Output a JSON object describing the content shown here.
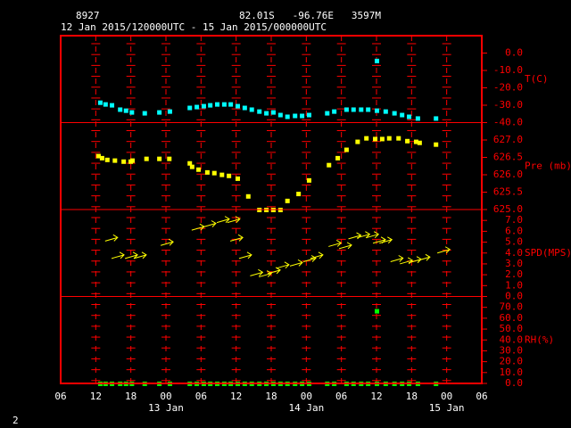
{
  "header": {
    "station": "8927",
    "location": "82.01S   -96.76E   3597M",
    "period": "12 Jan 2015/120000UTC - 15 Jan 2015/000000UTC"
  },
  "page_number": "2",
  "axis": {
    "xlim": [
      0,
      72
    ],
    "xticks": [
      {
        "value": 0,
        "label": "06"
      },
      {
        "value": 6,
        "label": "12"
      },
      {
        "value": 12,
        "label": "18"
      },
      {
        "value": 18,
        "label": "00"
      },
      {
        "value": 24,
        "label": "06"
      },
      {
        "value": 30,
        "label": "12"
      },
      {
        "value": 36,
        "label": "18"
      },
      {
        "value": 42,
        "label": "00"
      },
      {
        "value": 48,
        "label": "06"
      },
      {
        "value": 54,
        "label": "12"
      },
      {
        "value": 60,
        "label": "18"
      },
      {
        "value": 66,
        "label": "00"
      },
      {
        "value": 72,
        "label": "06"
      }
    ],
    "date_labels": [
      {
        "value": 18,
        "label": "13 Jan"
      },
      {
        "value": 42,
        "label": "14 Jan"
      },
      {
        "value": 66,
        "label": "15 Jan"
      }
    ]
  },
  "chart_data": [
    {
      "type": "scatter",
      "ylabel": "T(C)",
      "ylim": [
        -40,
        10
      ],
      "yticks": [
        {
          "value": 0,
          "label": "0.0"
        },
        {
          "value": -10,
          "label": "-10.0"
        },
        {
          "value": -20,
          "label": "-20.0"
        },
        {
          "value": -30,
          "label": "-30.0"
        },
        {
          "value": -40,
          "label": "-40.0"
        }
      ],
      "series": [
        {
          "color": "#00ffff",
          "x": [
            6.7,
            7.6,
            8.7,
            10.1,
            11.1,
            12.1,
            14.3,
            16.8,
            18.6,
            22.0,
            23.2,
            24.4,
            25.5,
            26.7,
            27.9,
            29.0,
            30.2,
            31.4,
            32.6,
            33.9,
            35.1,
            36.3,
            37.5,
            38.7,
            40.0,
            41.2,
            42.4,
            45.5,
            46.7,
            48.8,
            50.0,
            51.3,
            52.5,
            54.0,
            54.0,
            55.5,
            57.0,
            58.3,
            59.5,
            61.0,
            64.1
          ],
          "values": [
            -28.3,
            -29.3,
            -29.8,
            -32.3,
            -32.9,
            -33.9,
            -34.4,
            -33.9,
            -33.4,
            -31.3,
            -30.8,
            -30.3,
            -29.8,
            -29.3,
            -29.3,
            -29.3,
            -30.3,
            -31.3,
            -32.3,
            -33.4,
            -34.4,
            -33.9,
            -35.4,
            -36.4,
            -35.9,
            -35.9,
            -35.4,
            -34.4,
            -33.4,
            -32.3,
            -32.3,
            -32.3,
            -32.3,
            -32.9,
            -4.3,
            -33.4,
            -34.4,
            -35.4,
            -36.4,
            -37.4,
            -37.4
          ]
        }
      ]
    },
    {
      "type": "scatter",
      "ylabel": "Pre (mb)",
      "ylim": [
        625,
        627.5
      ],
      "yticks": [
        {
          "value": 627,
          "label": "627.0"
        },
        {
          "value": 626.5,
          "label": "626.5"
        },
        {
          "value": 626,
          "label": "626.0"
        },
        {
          "value": 625.5,
          "label": "625.5"
        },
        {
          "value": 625,
          "label": "625.0"
        }
      ],
      "series": [
        {
          "color": "#ffff00",
          "x": [
            6.4,
            7.0,
            7.9,
            9.2,
            10.7,
            11.9,
            12.2,
            14.6,
            16.8,
            18.5,
            22.0,
            22.4,
            23.5,
            25.0,
            26.2,
            27.5,
            28.7,
            30.2,
            32.0,
            33.9,
            35.1,
            36.3,
            37.5,
            38.7,
            40.6,
            42.4,
            45.8,
            47.3,
            48.8,
            50.7,
            52.2,
            53.7,
            54.9,
            56.1,
            57.7,
            59.2,
            60.7,
            61.3,
            64.1
          ],
          "values": [
            626.55,
            626.49,
            626.44,
            626.42,
            626.39,
            626.39,
            626.42,
            626.47,
            626.47,
            626.47,
            626.34,
            626.24,
            626.16,
            626.08,
            626.06,
            626.01,
            625.98,
            625.9,
            625.39,
            625.0,
            625.0,
            625.0,
            625.0,
            625.26,
            625.46,
            625.85,
            626.29,
            626.49,
            626.73,
            626.96,
            627.06,
            627.04,
            627.04,
            627.06,
            627.06,
            626.98,
            626.96,
            626.93,
            626.88
          ]
        }
      ]
    },
    {
      "type": "arrows",
      "ylabel": "SPD(MPS)",
      "ylim": [
        0,
        8
      ],
      "yticks": [
        {
          "value": 7,
          "label": "7.0"
        },
        {
          "value": 6,
          "label": "6.0"
        },
        {
          "value": 5,
          "label": "5.0"
        },
        {
          "value": 4,
          "label": "4.0"
        },
        {
          "value": 3,
          "label": "3.0"
        },
        {
          "value": 2,
          "label": "2.0"
        },
        {
          "value": 1,
          "label": "1.0"
        },
        {
          "value": 0,
          "label": "0.0"
        }
      ],
      "series": [
        {
          "color": "#ffff00",
          "x": [
            7.6,
            8.7,
            11.0,
            12.5,
            17.1,
            22.4,
            24.4,
            26.7,
            28.5,
            29.0,
            30.5,
            32.4,
            33.9,
            35.4,
            36.9,
            39.2,
            41.5,
            42.7,
            45.8,
            47.6,
            49.2,
            50.7,
            52.2,
            53.4,
            54.5,
            56.4,
            58.0,
            59.5,
            61.0,
            64.4
          ],
          "values": [
            5.1,
            3.5,
            3.5,
            3.5,
            4.7,
            6.1,
            6.4,
            6.8,
            6.8,
            5.1,
            3.5,
            1.9,
            1.8,
            2.1,
            2.6,
            2.8,
            3.2,
            3.5,
            4.6,
            4.4,
            5.3,
            5.4,
            5.4,
            4.9,
            4.9,
            3.2,
            3.0,
            3.1,
            3.3,
            4.0
          ]
        }
      ]
    },
    {
      "type": "scatter",
      "ylabel": "RH(%)",
      "ylim": [
        0,
        80
      ],
      "yticks": [
        {
          "value": 70,
          "label": "70.0"
        },
        {
          "value": 60,
          "label": "60.0"
        },
        {
          "value": 50,
          "label": "50.0"
        },
        {
          "value": 40,
          "label": "40.0"
        },
        {
          "value": 30,
          "label": "30.0"
        },
        {
          "value": 20,
          "label": "20.0"
        },
        {
          "value": 10,
          "label": "10.0"
        },
        {
          "value": 0,
          "label": "0.0"
        }
      ],
      "series": [
        {
          "color": "#00ff00",
          "x": [
            6.7,
            7.6,
            8.7,
            10.1,
            11.1,
            12.1,
            14.3,
            16.8,
            18.6,
            22.0,
            23.2,
            24.4,
            25.5,
            26.7,
            27.9,
            29.0,
            30.2,
            31.4,
            32.6,
            33.9,
            35.1,
            36.3,
            37.5,
            38.7,
            40.0,
            41.2,
            42.4,
            45.5,
            46.7,
            48.8,
            50.0,
            51.3,
            52.5,
            54.0,
            54.0,
            55.5,
            57.0,
            58.3,
            59.5,
            61.0,
            64.1
          ],
          "values": [
            0,
            0,
            0,
            0,
            0,
            0,
            0,
            0,
            0,
            0,
            0,
            0,
            0,
            0,
            0,
            0,
            0,
            0,
            0,
            0,
            0,
            0,
            0,
            0,
            0,
            0,
            0,
            0,
            0,
            0,
            0,
            0,
            0,
            0,
            66.8,
            0,
            0,
            0,
            0,
            0,
            0
          ]
        }
      ]
    }
  ]
}
